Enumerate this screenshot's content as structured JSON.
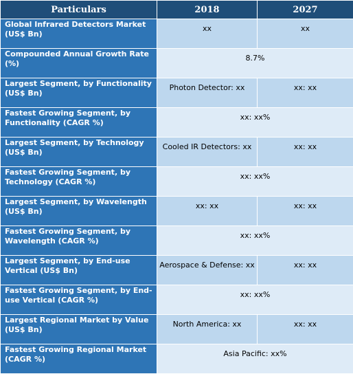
{
  "header": {
    "col0": "Particulars",
    "col1": "2018",
    "col2": "2027"
  },
  "rows": [
    {
      "label": "Global Infrared Detectors Market (US$ Bn)",
      "v2018": "xx",
      "v2027": "xx"
    },
    {
      "label": "Compounded Annual Growth Rate (%)",
      "merged": "8.7%"
    },
    {
      "label": "Largest Segment, by Functionality (US$ Bn)",
      "v2018": "Photon Detector: xx",
      "v2027": "xx: xx"
    },
    {
      "label": "Fastest Growing Segment, by Functionality (CAGR %)",
      "merged": "xx:  xx%"
    },
    {
      "label": "Largest Segment, by Technology (US$ Bn)",
      "v2018": "Cooled IR Detectors: xx",
      "v2027": "xx: xx"
    },
    {
      "label": "Fastest Growing Segment, by Technology (CAGR %)",
      "merged": "xx:  xx%"
    },
    {
      "label": "Largest Segment, by Wavelength (US$ Bn)",
      "v2018": "xx: xx",
      "v2027": "xx: xx"
    },
    {
      "label": "Fastest Growing Segment, by Wavelength (CAGR %)",
      "merged": "xx:  xx%"
    },
    {
      "label": "Largest Segment, by End-use Vertical (US$ Bn)",
      "v2018": "Aerospace & Defense: xx",
      "v2027": "xx: xx"
    },
    {
      "label": "Fastest Growing Segment, by End-use Vertical (CAGR %)",
      "merged": "xx:  xx%"
    },
    {
      "label": "Largest Regional Market by Value (US$ Bn)",
      "v2018": "North America: xx",
      "v2027": "xx: xx"
    },
    {
      "label": "Fastest Growing Regional Market (CAGR %)",
      "merged": "Asia Pacific: xx%"
    }
  ]
}
